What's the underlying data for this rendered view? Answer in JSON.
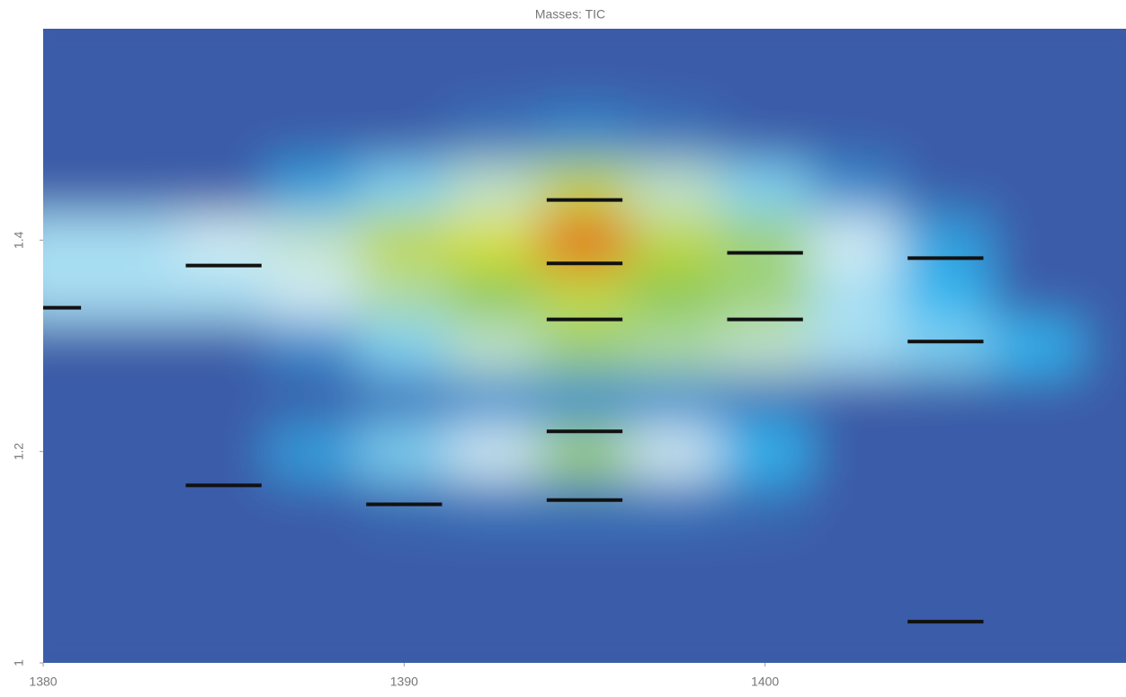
{
  "chart_data": {
    "type": "heatmap",
    "title": "Masses: TIC",
    "xlim": [
      1380,
      1410
    ],
    "ylim": [
      1,
      1.6
    ],
    "xticks": [
      1380,
      1390,
      1400
    ],
    "yticks": [
      1,
      1.2,
      1.4
    ],
    "x": [
      1380,
      1382.5,
      1385,
      1387.5,
      1390,
      1392.5,
      1395,
      1397.5,
      1400,
      1402.5,
      1405,
      1407.5,
      1410
    ],
    "y": [
      1,
      1.05,
      1.1,
      1.15,
      1.2,
      1.25,
      1.3,
      1.35,
      1.4,
      1.45,
      1.5,
      1.55,
      1.6
    ],
    "z": [
      [
        0,
        0,
        0,
        0,
        0,
        0,
        0,
        0,
        0,
        0,
        0,
        0,
        0
      ],
      [
        0,
        0,
        0,
        0,
        0,
        0,
        0,
        0,
        0,
        0,
        0,
        0,
        0
      ],
      [
        0,
        0,
        0,
        0,
        0,
        0,
        0,
        0,
        0,
        0,
        0,
        0,
        0
      ],
      [
        0,
        0,
        0,
        0,
        0.03,
        0.05,
        0.05,
        0.05,
        0.03,
        0,
        0,
        0,
        0
      ],
      [
        0,
        0,
        0,
        0.15,
        0.3,
        0.4,
        0.55,
        0.4,
        0.2,
        0,
        0,
        0,
        0
      ],
      [
        0,
        0,
        0,
        0,
        0.05,
        0.1,
        0.1,
        0.1,
        0.05,
        0,
        0,
        0,
        0
      ],
      [
        0,
        0,
        0,
        0.1,
        0.3,
        0.45,
        0.55,
        0.5,
        0.45,
        0.35,
        0.3,
        0.2,
        0
      ],
      [
        0.35,
        0.35,
        0.35,
        0.4,
        0.5,
        0.6,
        0.7,
        0.6,
        0.55,
        0.35,
        0.2,
        0,
        0
      ],
      [
        0.35,
        0.35,
        0.4,
        0.45,
        0.7,
        0.75,
        0.95,
        0.7,
        0.55,
        0.4,
        0.15,
        0,
        0
      ],
      [
        0,
        0,
        0,
        0.15,
        0.3,
        0.45,
        0.7,
        0.45,
        0.3,
        0.1,
        0,
        0,
        0
      ],
      [
        0,
        0,
        0,
        0,
        0,
        0.05,
        0.1,
        0.05,
        0,
        0,
        0,
        0,
        0
      ],
      [
        0,
        0,
        0,
        0,
        0,
        0,
        0,
        0,
        0,
        0,
        0,
        0,
        0
      ],
      [
        0,
        0,
        0,
        0,
        0,
        0,
        0,
        0,
        0,
        0,
        0,
        0,
        0
      ]
    ],
    "colormap": [
      "#3b5ca8",
      "#2fb6f0",
      "#d2ecf4",
      "#8cc850",
      "#f5e82a",
      "#e03a14"
    ],
    "markers": {
      "color": "#111111",
      "x": [
        1380,
        1385,
        1385,
        1390,
        1395,
        1395,
        1395,
        1395,
        1395,
        1400,
        1400,
        1405,
        1405,
        1405
      ],
      "y": [
        1.336,
        1.376,
        1.168,
        1.15,
        1.438,
        1.378,
        1.325,
        1.219,
        1.154,
        1.388,
        1.325,
        1.383,
        1.304,
        1.039
      ]
    }
  }
}
